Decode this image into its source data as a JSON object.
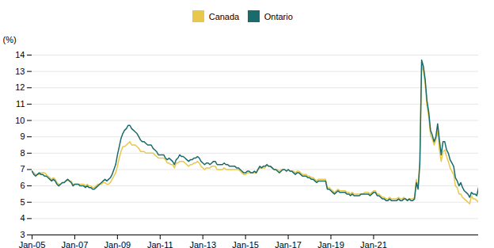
{
  "chart_data": {
    "type": "line",
    "ylabel": "(%)",
    "categories": [
      "Jan-05",
      null,
      null,
      null,
      null,
      null,
      null,
      null,
      null,
      null,
      null,
      null,
      null,
      null,
      null,
      null,
      null,
      null,
      null,
      null,
      null,
      null,
      null,
      null,
      "Jan-07",
      null,
      null,
      null,
      null,
      null,
      null,
      null,
      null,
      null,
      null,
      null,
      null,
      null,
      null,
      null,
      null,
      null,
      null,
      null,
      null,
      null,
      null,
      null,
      "Jan-09",
      null,
      null,
      null,
      null,
      null,
      null,
      null,
      null,
      null,
      null,
      null,
      null,
      null,
      null,
      null,
      null,
      null,
      null,
      null,
      null,
      null,
      null,
      null,
      "Jan-11",
      null,
      null,
      null,
      null,
      null,
      null,
      null,
      null,
      null,
      null,
      null,
      null,
      null,
      null,
      null,
      null,
      null,
      null,
      null,
      null,
      null,
      null,
      null,
      "Jan-13",
      null,
      null,
      null,
      null,
      null,
      null,
      null,
      null,
      null,
      null,
      null,
      null,
      null,
      null,
      null,
      null,
      null,
      null,
      null,
      null,
      null,
      null,
      null,
      "Jan-15",
      null,
      null,
      null,
      null,
      null,
      null,
      null,
      null,
      null,
      null,
      null,
      null,
      null,
      null,
      null,
      null,
      null,
      null,
      null,
      null,
      null,
      null,
      null,
      "Jan-17",
      null,
      null,
      null,
      null,
      null,
      null,
      null,
      null,
      null,
      null,
      null,
      null,
      null,
      null,
      null,
      null,
      null,
      null,
      null,
      null,
      null,
      null,
      null,
      "Jan-19",
      null,
      null,
      null,
      null,
      null,
      null,
      null,
      null,
      null,
      null,
      null,
      null,
      null,
      null,
      null,
      null,
      null,
      null,
      null,
      null,
      null,
      null,
      null,
      "Jan-21",
      null,
      null,
      null,
      null,
      null,
      null,
      null,
      null,
      null,
      null,
      null,
      null,
      null,
      null,
      null,
      null,
      null,
      null,
      null,
      null,
      null,
      null,
      null,
      null,
      null,
      null,
      null,
      null,
      null,
      null,
      null,
      null,
      null,
      null,
      null,
      null,
      null,
      null,
      null,
      null,
      null,
      null,
      null,
      null,
      null,
      null,
      null,
      null,
      null,
      null,
      null,
      null,
      null,
      null,
      null,
      null,
      null,
      null,
      null
    ],
    "series": [
      {
        "name": "Canada",
        "color": "#E8C84A",
        "values": [
          6.9,
          6.8,
          6.7,
          6.7,
          6.7,
          6.8,
          6.8,
          6.8,
          6.7,
          6.6,
          6.5,
          6.4,
          6.5,
          6.4,
          6.2,
          6.1,
          6.1,
          6.2,
          6.2,
          6.3,
          6.4,
          6.3,
          6.3,
          6.1,
          6.1,
          6.1,
          6.1,
          6.1,
          6.1,
          6.1,
          6.0,
          6.1,
          6.0,
          6.0,
          5.9,
          5.9,
          6.0,
          6.1,
          6.1,
          6.1,
          6.2,
          6.2,
          6.1,
          6.1,
          6.2,
          6.4,
          6.6,
          6.8,
          7.2,
          7.7,
          8.1,
          8.4,
          8.4,
          8.5,
          8.6,
          8.7,
          8.5,
          8.5,
          8.5,
          8.4,
          8.3,
          8.1,
          8.1,
          8.1,
          8.0,
          8.0,
          8.0,
          8.0,
          8.0,
          7.9,
          7.8,
          7.7,
          7.7,
          7.7,
          7.7,
          7.6,
          7.4,
          7.4,
          7.3,
          7.3,
          7.1,
          7.4,
          7.4,
          7.5,
          7.5,
          7.5,
          7.4,
          7.3,
          7.2,
          7.3,
          7.3,
          7.4,
          7.4,
          7.5,
          7.4,
          7.2,
          7.1,
          7.0,
          7.1,
          7.1,
          7.1,
          7.2,
          7.2,
          7.2,
          7.0,
          7.0,
          7.0,
          7.0,
          7.1,
          7.0,
          7.0,
          7.0,
          7.0,
          7.0,
          7.0,
          7.0,
          7.0,
          6.9,
          6.8,
          6.7,
          6.7,
          6.8,
          6.8,
          6.8,
          6.8,
          6.8,
          6.8,
          7.0,
          7.1,
          7.1,
          7.1,
          7.1,
          7.3,
          7.2,
          7.2,
          7.1,
          7.0,
          7.0,
          7.0,
          6.9,
          7.0,
          7.0,
          7.0,
          6.9,
          7.0,
          6.9,
          6.9,
          6.9,
          6.8,
          6.9,
          6.9,
          6.8,
          6.7,
          6.7,
          6.7,
          6.6,
          6.6,
          6.5,
          6.5,
          6.4,
          6.3,
          6.4,
          6.4,
          6.4,
          6.4,
          6.4,
          5.9,
          5.9,
          5.8,
          5.7,
          5.6,
          5.7,
          5.8,
          5.7,
          5.7,
          5.7,
          5.7,
          5.6,
          5.6,
          5.5,
          5.6,
          5.5,
          5.5,
          5.5,
          5.5,
          5.5,
          5.5,
          5.6,
          5.6,
          5.6,
          5.5,
          5.6,
          5.7,
          5.7,
          5.5,
          5.5,
          5.4,
          5.3,
          5.3,
          5.2,
          5.2,
          5.3,
          5.2,
          5.2,
          5.2,
          5.2,
          5.3,
          5.2,
          5.2,
          5.3,
          5.2,
          5.1,
          5.2,
          5.2,
          5.2,
          5.3,
          6.4,
          5.9,
          7.5,
          13.4,
          13.0,
          12.2,
          10.9,
          10.2,
          9.1,
          8.9,
          8.5,
          8.8,
          9.4,
          8.2,
          7.5,
          8.1,
          8.2,
          7.8,
          7.5,
          7.1,
          6.9,
          6.7,
          6.0,
          5.9,
          5.5,
          5.5,
          5.3,
          5.2,
          5.1,
          5.0,
          4.9,
          5.4,
          5.2,
          5.2,
          5.1,
          5.0
        ]
      },
      {
        "name": "Ontario",
        "color": "#1A6B6B",
        "values": [
          6.9,
          6.7,
          6.6,
          6.7,
          6.8,
          6.7,
          6.7,
          6.6,
          6.6,
          6.5,
          6.4,
          6.3,
          6.4,
          6.3,
          6.1,
          6.0,
          6.1,
          6.2,
          6.2,
          6.3,
          6.4,
          6.3,
          6.2,
          6.0,
          6.1,
          6.1,
          6.1,
          6.0,
          6.0,
          6.0,
          5.9,
          6.0,
          5.9,
          5.9,
          5.8,
          5.8,
          5.9,
          6.0,
          6.1,
          6.2,
          6.3,
          6.4,
          6.3,
          6.4,
          6.5,
          6.7,
          7.0,
          7.3,
          7.9,
          8.4,
          8.9,
          9.2,
          9.4,
          9.5,
          9.7,
          9.7,
          9.5,
          9.4,
          9.3,
          9.2,
          9.0,
          8.8,
          8.7,
          8.7,
          8.6,
          8.5,
          8.5,
          8.5,
          8.3,
          8.2,
          8.1,
          7.9,
          7.9,
          7.9,
          7.9,
          7.7,
          7.6,
          7.7,
          7.6,
          7.5,
          7.3,
          7.6,
          7.7,
          7.9,
          7.8,
          7.8,
          7.7,
          7.6,
          7.5,
          7.6,
          7.6,
          7.7,
          7.7,
          7.8,
          7.7,
          7.5,
          7.4,
          7.3,
          7.4,
          7.4,
          7.3,
          7.4,
          7.5,
          7.5,
          7.3,
          7.3,
          7.3,
          7.3,
          7.4,
          7.3,
          7.3,
          7.2,
          7.2,
          7.2,
          7.2,
          7.1,
          7.1,
          7.0,
          6.9,
          6.8,
          6.8,
          6.9,
          6.9,
          6.8,
          6.8,
          6.9,
          6.8,
          7.0,
          7.2,
          7.1,
          7.2,
          7.2,
          7.3,
          7.2,
          7.2,
          7.1,
          7.0,
          7.0,
          6.9,
          6.8,
          6.9,
          7.0,
          7.0,
          6.9,
          7.0,
          6.9,
          6.9,
          6.8,
          6.7,
          6.8,
          6.8,
          6.7,
          6.6,
          6.6,
          6.6,
          6.5,
          6.5,
          6.4,
          6.4,
          6.3,
          6.2,
          6.3,
          6.3,
          6.3,
          6.3,
          6.3,
          5.8,
          5.8,
          5.7,
          5.6,
          5.5,
          5.6,
          5.7,
          5.6,
          5.6,
          5.6,
          5.6,
          5.5,
          5.5,
          5.4,
          5.5,
          5.4,
          5.4,
          5.4,
          5.4,
          5.5,
          5.5,
          5.5,
          5.5,
          5.5,
          5.4,
          5.5,
          5.6,
          5.6,
          5.4,
          5.4,
          5.3,
          5.2,
          5.2,
          5.1,
          5.1,
          5.2,
          5.1,
          5.1,
          5.1,
          5.1,
          5.2,
          5.1,
          5.1,
          5.2,
          5.2,
          5.1,
          5.2,
          5.1,
          5.1,
          5.2,
          6.2,
          5.8,
          7.4,
          13.7,
          13.3,
          12.5,
          11.2,
          10.5,
          9.4,
          9.1,
          8.7,
          9.0,
          9.8,
          8.8,
          7.9,
          8.7,
          8.7,
          8.2,
          8.0,
          7.6,
          7.4,
          7.2,
          6.5,
          6.3,
          6.0,
          6.2,
          5.9,
          5.7,
          5.6,
          5.5,
          5.3,
          5.6,
          5.5,
          5.5,
          5.4,
          5.9
        ]
      }
    ],
    "ylim": [
      3,
      14
    ],
    "yticks": [
      3,
      4,
      5,
      6,
      7,
      8,
      9,
      10,
      11,
      12,
      13,
      14
    ],
    "grid": true,
    "legend": "top"
  }
}
